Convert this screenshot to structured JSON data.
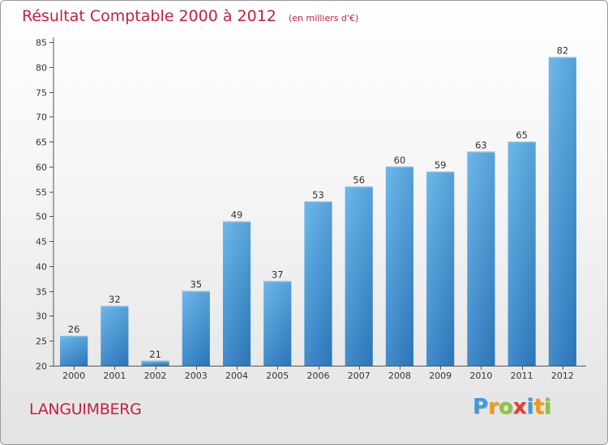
{
  "chart_data": {
    "type": "bar",
    "title": "Résultat Comptable 2000 à 2012",
    "subtitle": "(en milliers d'€)",
    "categories": [
      "2000",
      "2001",
      "2002",
      "2003",
      "2004",
      "2005",
      "2006",
      "2007",
      "2008",
      "2009",
      "2010",
      "2011",
      "2012"
    ],
    "values": [
      26,
      32,
      21,
      35,
      49,
      37,
      53,
      56,
      60,
      59,
      63,
      65,
      82
    ],
    "ylim": [
      20,
      85
    ],
    "yticks": [
      20,
      25,
      30,
      35,
      40,
      45,
      50,
      55,
      60,
      65,
      70,
      75,
      80,
      85
    ],
    "xlabel": "",
    "ylabel": "",
    "grid": false,
    "bar_color": "#3f95d8"
  },
  "commune": "LANGUIMBERG",
  "logo": {
    "letters": [
      "P",
      "r",
      "o",
      "x",
      "i",
      "t",
      "i"
    ],
    "colors": [
      "#3b9be0",
      "#f19a1a",
      "#8cc63f",
      "#e63c2f",
      "#3b9be0",
      "#f19a1a",
      "#8cc63f"
    ]
  },
  "colors": {
    "title": "#c4203f",
    "axis": "#555555"
  }
}
